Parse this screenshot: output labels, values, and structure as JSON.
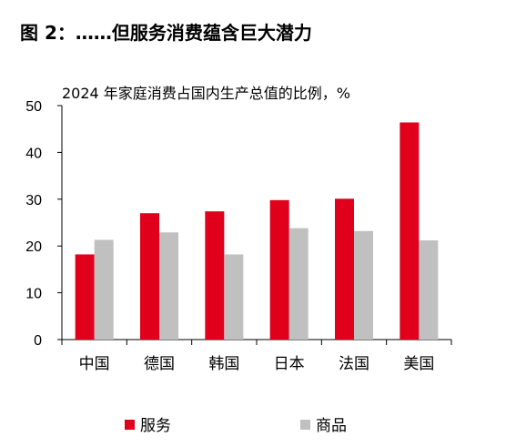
{
  "figure_title": "图 2：……但服务消费蕴含巨大潜力",
  "chart_data": {
    "type": "bar",
    "title": "2024 年家庭消费占国内生产总值的比例，%",
    "categories": [
      "中国",
      "德国",
      "韩国",
      "日本",
      "法国",
      "美国"
    ],
    "series": [
      {
        "name": "服务",
        "color": "#e0001b",
        "values": [
          18.2,
          27.0,
          27.4,
          29.8,
          30.1,
          46.4
        ]
      },
      {
        "name": "商品",
        "color": "#c0c0c0",
        "values": [
          21.3,
          22.9,
          18.2,
          23.8,
          23.2,
          21.2
        ]
      }
    ],
    "ylim": [
      0,
      50
    ],
    "yticks": [
      0,
      10,
      20,
      30,
      40,
      50
    ],
    "xlabel": "",
    "ylabel": "",
    "grid": false,
    "legend_position": "bottom"
  }
}
